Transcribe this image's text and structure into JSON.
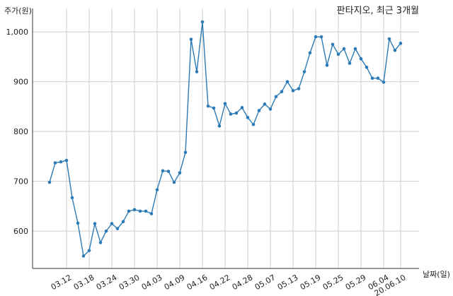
{
  "chart_data": {
    "type": "line",
    "title": "판타지오, 최근 3개월",
    "xlabel": "날짜(일)",
    "ylabel": "주가(원)",
    "ylim": [
      525,
      1047
    ],
    "yticks": [
      600,
      700,
      800,
      900,
      1000
    ],
    "ytick_labels": [
      "600",
      "700",
      "800",
      "900",
      "1,000"
    ],
    "grid": true,
    "line_color": "#2c7bb6",
    "xticks": [
      {
        "index": 3,
        "label": "03.12"
      },
      {
        "index": 7,
        "label": "03.18"
      },
      {
        "index": 11,
        "label": "03.24"
      },
      {
        "index": 15,
        "label": "03.30"
      },
      {
        "index": 19,
        "label": "04.03"
      },
      {
        "index": 23,
        "label": "04.09"
      },
      {
        "index": 27,
        "label": "04.16"
      },
      {
        "index": 31,
        "label": "04.22"
      },
      {
        "index": 35,
        "label": "04.28"
      },
      {
        "index": 39,
        "label": "05.07"
      },
      {
        "index": 43,
        "label": "05.13"
      },
      {
        "index": 47,
        "label": "05.19"
      },
      {
        "index": 51,
        "label": "05.25"
      },
      {
        "index": 55,
        "label": "05.29"
      },
      {
        "index": 59,
        "label": "06.04"
      },
      {
        "index": 62,
        "label": "20.06.10"
      }
    ],
    "series": [
      {
        "values": [
          698,
          737,
          739,
          742,
          667,
          616,
          550,
          561,
          615,
          577,
          600,
          615,
          605,
          619,
          640,
          643,
          640,
          640,
          635,
          683,
          721,
          720,
          698,
          717,
          758,
          985,
          920,
          1020,
          851,
          847,
          811,
          856,
          835,
          837,
          848,
          828,
          814,
          842,
          855,
          845,
          870,
          880,
          900,
          882,
          886,
          920,
          958,
          990,
          990,
          933,
          975,
          955,
          966,
          937,
          966,
          946,
          929,
          907,
          907,
          899,
          986,
          963,
          977
        ]
      }
    ]
  }
}
